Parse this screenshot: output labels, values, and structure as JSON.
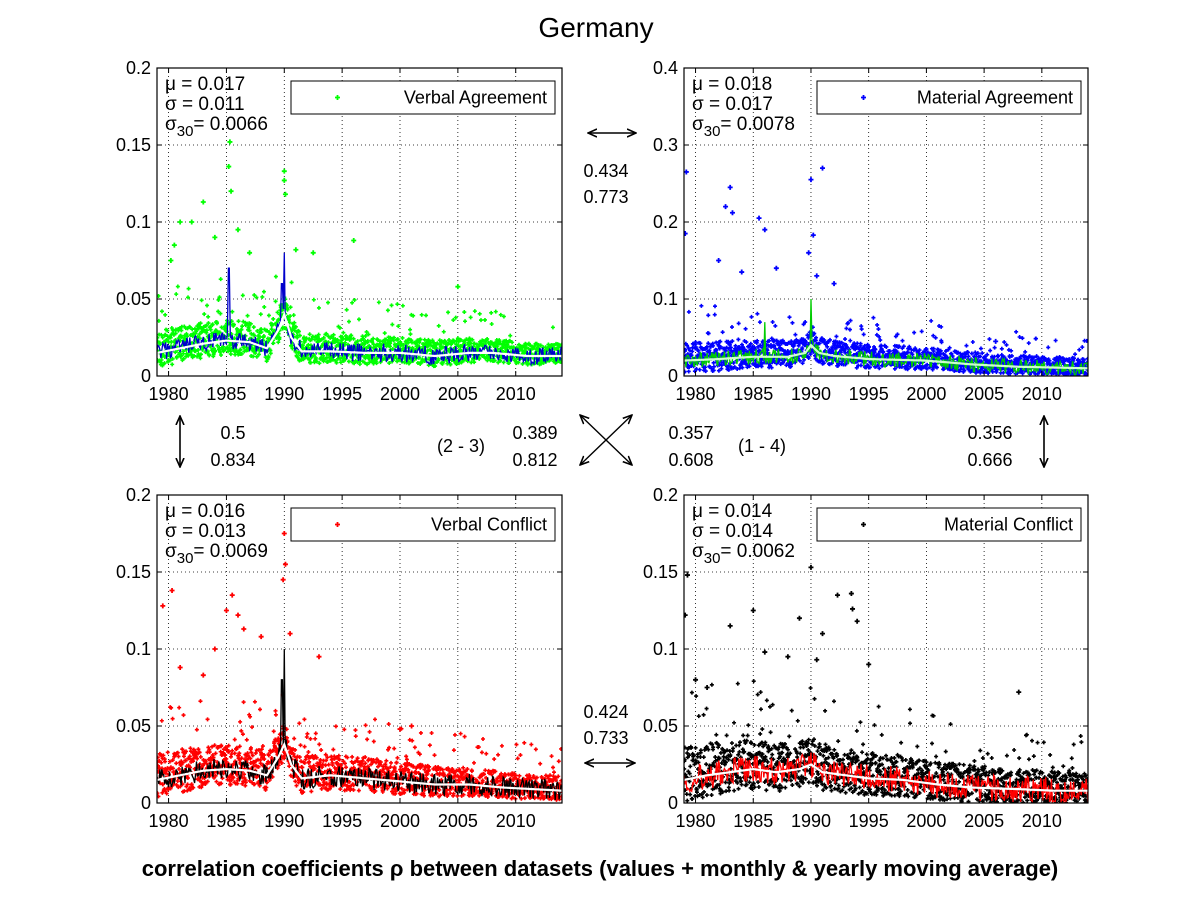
{
  "figure": {
    "title": "Germany",
    "caption": "correlation coefficients ρ between datasets (values + monthly & yearly moving average)"
  },
  "correlations": {
    "top": {
      "values": [
        "0.434",
        "0.773"
      ]
    },
    "bottom": {
      "values": [
        "0.424",
        "0.733"
      ]
    },
    "left": {
      "values": [
        "0.5",
        "0.834"
      ]
    },
    "right": {
      "values": [
        "0.356",
        "0.666"
      ]
    },
    "diag_left": {
      "label": "(2 - 3)",
      "values": [
        "0.389",
        "0.812"
      ]
    },
    "diag_right": {
      "label": "(1 - 4)",
      "values": [
        "0.357",
        "0.608"
      ]
    }
  },
  "chart_data": [
    {
      "type": "scatter",
      "title": "",
      "legend": "Verbal Agreement",
      "legend_position": "top-right",
      "grid": true,
      "xlim": [
        1979,
        2014
      ],
      "xticks": [
        "1980",
        "1985",
        "1990",
        "1995",
        "2000",
        "2005",
        "2010"
      ],
      "ylim": [
        0,
        0.2
      ],
      "yticks": [
        "0",
        "0.05",
        "0.1",
        "0.15",
        "0.2"
      ],
      "stats": {
        "mu": "μ    = 0.017",
        "sigma": "σ    = 0.011",
        "sigma30_prefix": "σ",
        "sigma30_sub": "30",
        "sigma30_value": "= 0.0066"
      },
      "colors": {
        "points": "#00ff00",
        "monthly": "#0000cc",
        "yearly": "#ffffff"
      },
      "base": 0.018,
      "spread": 0.011,
      "yearly": [
        [
          1979,
          0.015
        ],
        [
          1981,
          0.018
        ],
        [
          1983,
          0.021
        ],
        [
          1985,
          0.023
        ],
        [
          1987,
          0.022
        ],
        [
          1988.5,
          0.018
        ],
        [
          1989.5,
          0.03
        ],
        [
          1990,
          0.04
        ],
        [
          1990.6,
          0.025
        ],
        [
          1991.5,
          0.016
        ],
        [
          1994,
          0.016
        ],
        [
          1997,
          0.015
        ],
        [
          2000,
          0.015
        ],
        [
          2003,
          0.013
        ],
        [
          2006,
          0.015
        ],
        [
          2008,
          0.015
        ],
        [
          2011,
          0.013
        ],
        [
          2014,
          0.013
        ]
      ],
      "spikes": [
        [
          1985.2,
          0.07
        ],
        [
          1990,
          0.08
        ],
        [
          1989.8,
          0.06
        ]
      ],
      "outliers": [
        [
          1985.3,
          0.152
        ],
        [
          1985.2,
          0.136
        ],
        [
          1985.4,
          0.12
        ],
        [
          1983,
          0.113
        ],
        [
          1990,
          0.133
        ],
        [
          1990,
          0.127
        ],
        [
          1990.1,
          0.118
        ],
        [
          1981,
          0.1
        ],
        [
          1982,
          0.1
        ],
        [
          1980.5,
          0.085
        ],
        [
          1984,
          0.09
        ],
        [
          1986,
          0.095
        ],
        [
          1996,
          0.088
        ],
        [
          1992.5,
          0.08
        ],
        [
          1987,
          0.08
        ],
        [
          2005,
          0.058
        ],
        [
          1980.2,
          0.075
        ],
        [
          1991,
          0.082
        ]
      ]
    },
    {
      "type": "scatter",
      "title": "",
      "legend": "Material Agreement",
      "legend_position": "top-right",
      "grid": true,
      "xlim": [
        1979,
        2014
      ],
      "xticks": [
        "1980",
        "1985",
        "1990",
        "1995",
        "2000",
        "2005",
        "2010"
      ],
      "ylim": [
        0,
        0.4
      ],
      "yticks": [
        "0",
        "0.1",
        "0.2",
        "0.3",
        "0.4"
      ],
      "stats": {
        "mu": "μ    = 0.018",
        "sigma": "σ    = 0.017",
        "sigma30_prefix": "σ",
        "sigma30_sub": "30",
        "sigma30_value": "= 0.0078"
      },
      "colors": {
        "points": "#0000ff",
        "monthly": "#00cc00",
        "yearly": "#ccffcc"
      },
      "base": 0.018,
      "spread": 0.018,
      "yearly": [
        [
          1979,
          0.02
        ],
        [
          1982,
          0.022
        ],
        [
          1985,
          0.025
        ],
        [
          1988,
          0.025
        ],
        [
          1989.5,
          0.03
        ],
        [
          1990,
          0.04
        ],
        [
          1990.7,
          0.03
        ],
        [
          1992,
          0.026
        ],
        [
          1995,
          0.022
        ],
        [
          2000,
          0.02
        ],
        [
          2004,
          0.015
        ],
        [
          2008,
          0.012
        ],
        [
          2014,
          0.01
        ]
      ],
      "spikes": [
        [
          1986,
          0.07
        ],
        [
          1990,
          0.1
        ]
      ],
      "outliers": [
        [
          1979.2,
          0.265
        ],
        [
          1979.1,
          0.185
        ],
        [
          1983,
          0.245
        ],
        [
          1982.6,
          0.22
        ],
        [
          1983.2,
          0.212
        ],
        [
          1985.5,
          0.205
        ],
        [
          1986,
          0.19
        ],
        [
          1990,
          0.255
        ],
        [
          1991,
          0.27
        ],
        [
          1990.2,
          0.183
        ],
        [
          1989.8,
          0.16
        ],
        [
          1982,
          0.15
        ],
        [
          1984,
          0.135
        ],
        [
          1987,
          0.14
        ],
        [
          1992,
          0.12
        ],
        [
          1990.5,
          0.13
        ],
        [
          2006,
          0.045
        ]
      ]
    },
    {
      "type": "scatter",
      "title": "",
      "legend": "Verbal Conflict",
      "legend_position": "top-right",
      "grid": true,
      "xlim": [
        1979,
        2014
      ],
      "xticks": [
        "1980",
        "1985",
        "1990",
        "1995",
        "2000",
        "2005",
        "2010"
      ],
      "ylim": [
        0,
        0.2
      ],
      "yticks": [
        "0",
        "0.05",
        "0.1",
        "0.15",
        "0.2"
      ],
      "stats": {
        "mu": "μ    = 0.016",
        "sigma": "σ    = 0.013",
        "sigma30_prefix": "σ",
        "sigma30_sub": "30",
        "sigma30_value": "= 0.0069"
      },
      "colors": {
        "points": "#ff0000",
        "monthly": "#000000",
        "yearly": "#ffffff"
      },
      "base": 0.017,
      "spread": 0.013,
      "yearly": [
        [
          1979,
          0.015
        ],
        [
          1981,
          0.018
        ],
        [
          1983,
          0.021
        ],
        [
          1985,
          0.022
        ],
        [
          1987,
          0.021
        ],
        [
          1988.5,
          0.018
        ],
        [
          1989.5,
          0.03
        ],
        [
          1990,
          0.038
        ],
        [
          1990.6,
          0.025
        ],
        [
          1991.5,
          0.016
        ],
        [
          1994,
          0.018
        ],
        [
          1997,
          0.016
        ],
        [
          2000,
          0.014
        ],
        [
          2003,
          0.012
        ],
        [
          2006,
          0.012
        ],
        [
          2009,
          0.01
        ],
        [
          2014,
          0.008
        ]
      ],
      "spikes": [
        [
          1990,
          0.1
        ],
        [
          1989.8,
          0.08
        ]
      ],
      "outliers": [
        [
          1990,
          0.175
        ],
        [
          1990.1,
          0.155
        ],
        [
          1989.9,
          0.145
        ],
        [
          1979.5,
          0.128
        ],
        [
          1980.3,
          0.138
        ],
        [
          1985.5,
          0.135
        ],
        [
          1985,
          0.125
        ],
        [
          1986,
          0.122
        ],
        [
          1984,
          0.1
        ],
        [
          1986.5,
          0.113
        ],
        [
          1988,
          0.108
        ],
        [
          1993,
          0.095
        ],
        [
          1990.5,
          0.11
        ],
        [
          2000,
          0.048
        ],
        [
          2001,
          0.05
        ],
        [
          1981,
          0.088
        ],
        [
          1983,
          0.083
        ]
      ]
    },
    {
      "type": "scatter",
      "title": "",
      "legend": "Material Conflict",
      "legend_position": "top-right",
      "grid": true,
      "xlim": [
        1979,
        2014
      ],
      "xticks": [
        "1980",
        "1985",
        "1990",
        "1995",
        "2000",
        "2005",
        "2010"
      ],
      "ylim": [
        0,
        0.2
      ],
      "yticks": [
        "0",
        "0.05",
        "0.1",
        "0.15",
        "0.2"
      ],
      "stats": {
        "mu": "μ    = 0.014",
        "sigma": "σ    = 0.014",
        "sigma30_prefix": "σ",
        "sigma30_sub": "30",
        "sigma30_value": "= 0.0062"
      },
      "colors": {
        "points": "#000000",
        "monthly": "#ff0000",
        "yearly": "#ffffff"
      },
      "base": 0.016,
      "spread": 0.016,
      "yearly": [
        [
          1979,
          0.015
        ],
        [
          1981,
          0.018
        ],
        [
          1983,
          0.02
        ],
        [
          1985,
          0.022
        ],
        [
          1987,
          0.02
        ],
        [
          1989,
          0.022
        ],
        [
          1990,
          0.025
        ],
        [
          1991,
          0.02
        ],
        [
          1993,
          0.018
        ],
        [
          1995,
          0.016
        ],
        [
          1998,
          0.015
        ],
        [
          2001,
          0.012
        ],
        [
          2004,
          0.01
        ],
        [
          2008,
          0.009
        ],
        [
          2011,
          0.008
        ],
        [
          2014,
          0.008
        ]
      ],
      "spikes": [],
      "outliers": [
        [
          1979.3,
          0.148
        ],
        [
          1979.1,
          0.122
        ],
        [
          1990,
          0.153
        ],
        [
          1992.3,
          0.135
        ],
        [
          1993.5,
          0.136
        ],
        [
          1993.6,
          0.126
        ],
        [
          1994,
          0.118
        ],
        [
          1985,
          0.125
        ],
        [
          1983,
          0.115
        ],
        [
          1989,
          0.12
        ],
        [
          1991,
          0.11
        ],
        [
          1986,
          0.098
        ],
        [
          1988,
          0.095
        ],
        [
          1990.5,
          0.093
        ],
        [
          1995,
          0.09
        ],
        [
          2008,
          0.072
        ],
        [
          1980,
          0.08
        ],
        [
          1981,
          0.075
        ]
      ]
    }
  ]
}
